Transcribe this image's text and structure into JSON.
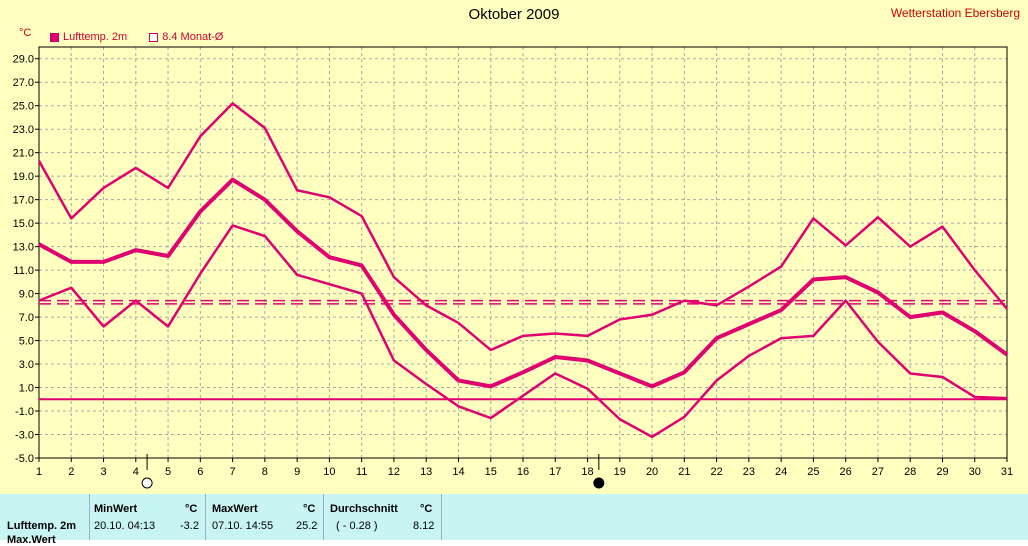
{
  "header": {
    "title": "Oktober 2009",
    "station": "Wetterstation Ebersberg",
    "unit": "°C",
    "legend": [
      {
        "label": "Lufttemp. 2m",
        "color": "#e0006f"
      },
      {
        "label": "8.4 Monat-Ø",
        "color": "#e0006f"
      }
    ]
  },
  "chart_data": {
    "type": "line",
    "title": "Oktober 2009",
    "ylabel": "°C",
    "ylim": [
      -5,
      30
    ],
    "yticks": [
      "29.0",
      "27.0",
      "25.0",
      "23.0",
      "21.0",
      "19.0",
      "17.0",
      "15.0",
      "13.0",
      "11.0",
      "9.0",
      "7.0",
      "5.0",
      "3.0",
      "1.0",
      "-1.0",
      "-3.0",
      "-5.0"
    ],
    "x": [
      1,
      2,
      3,
      4,
      5,
      6,
      7,
      8,
      9,
      10,
      11,
      12,
      13,
      14,
      15,
      16,
      17,
      18,
      19,
      20,
      21,
      22,
      23,
      24,
      25,
      26,
      27,
      28,
      29,
      30,
      31
    ],
    "series": [
      {
        "values": [
          20.3,
          15.4,
          18.0,
          19.7,
          18.0,
          22.4,
          25.2,
          23.1,
          17.8,
          17.2,
          15.6,
          10.4,
          8.0,
          6.5,
          4.2,
          5.4,
          5.6,
          5.4,
          6.8,
          7.2,
          8.4,
          8.0,
          9.6,
          11.3,
          15.4,
          13.1,
          15.5,
          13.0,
          14.7,
          11.0,
          7.7
        ]
      },
      {
        "values": [
          13.2,
          11.7,
          11.7,
          12.7,
          12.2,
          16.0,
          18.7,
          17.0,
          14.3,
          12.1,
          11.4,
          7.2,
          4.2,
          1.6,
          1.1,
          2.3,
          3.6,
          3.3,
          2.2,
          1.1,
          2.3,
          5.2,
          6.4,
          7.6,
          10.2,
          10.4,
          9.1,
          7.0,
          7.4,
          5.8,
          3.8
        ]
      },
      {
        "values": [
          8.4,
          9.5,
          6.2,
          8.4,
          6.2,
          10.7,
          14.8,
          13.9,
          10.6,
          9.8,
          9.0,
          3.3,
          1.3,
          -0.6,
          -1.6,
          0.3,
          2.2,
          0.9,
          -1.7,
          -3.2,
          -1.5,
          1.6,
          3.7,
          5.2,
          5.4,
          8.4,
          4.9,
          2.2,
          1.9,
          0.2,
          0.1
        ]
      }
    ],
    "reference_lines": [
      {
        "kind": "dashed",
        "value": 8.12
      },
      {
        "kind": "dashed",
        "value": 8.4
      },
      {
        "kind": "solid",
        "value": 0
      }
    ],
    "moon_markers": [
      {
        "x": 4.35,
        "phase": "full"
      },
      {
        "x": 18.35,
        "phase": "new"
      }
    ],
    "grid": true,
    "legend_position": "top-left"
  },
  "stats": {
    "row_label": "Lufttemp. 2m",
    "row_label_2": "Max.Wert",
    "min": {
      "header": "MinWert",
      "unit": "°C",
      "time": "20.10.  04:13",
      "value": "-3.2"
    },
    "max": {
      "header": "MaxWert",
      "unit": "°C",
      "time": "07.10.  14:55",
      "value": "25.2"
    },
    "avg": {
      "header": "Durchschnitt",
      "unit": "°C",
      "time": "( - 0.28 )",
      "value": "8.12"
    }
  }
}
